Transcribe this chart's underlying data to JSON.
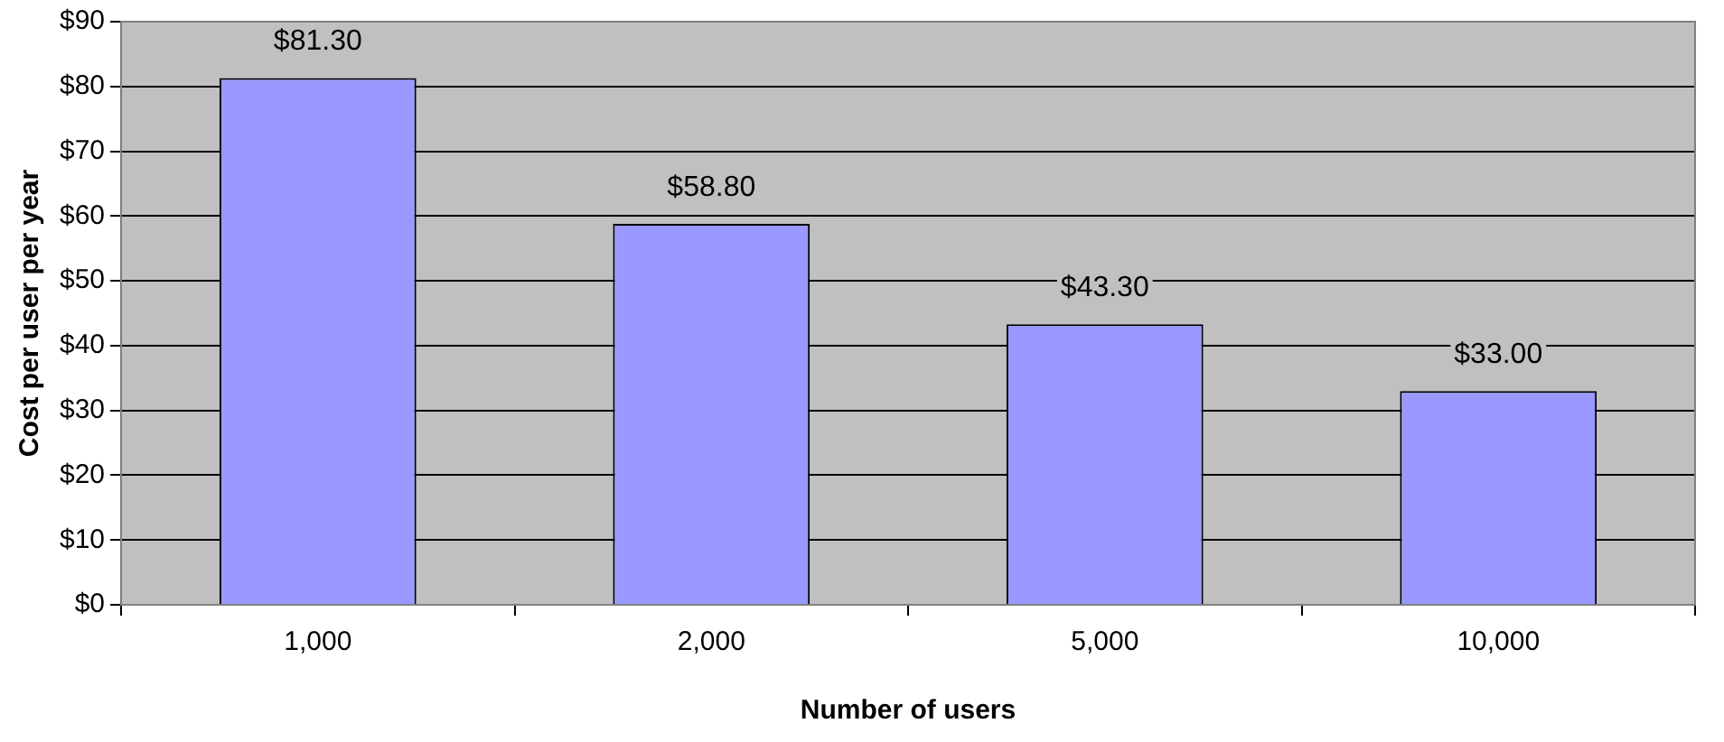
{
  "chart_data": {
    "type": "bar",
    "xlabel": "Number of users",
    "ylabel": "Cost per user per year",
    "categories": [
      "1,000",
      "2,000",
      "5,000",
      "10,000"
    ],
    "values": [
      81.3,
      58.8,
      43.3,
      33.0
    ],
    "value_labels": [
      "$81.30",
      "$58.80",
      "$43.30",
      "$33.00"
    ],
    "color": "#9999ff",
    "ylim": [
      0,
      90
    ],
    "yticks": [
      {
        "value": 0,
        "label": "$0"
      },
      {
        "value": 10,
        "label": "$10"
      },
      {
        "value": 20,
        "label": "$20"
      },
      {
        "value": 30,
        "label": "$30"
      },
      {
        "value": 40,
        "label": "$40"
      },
      {
        "value": 50,
        "label": "$50"
      },
      {
        "value": 60,
        "label": "$60"
      },
      {
        "value": 70,
        "label": "$70"
      },
      {
        "value": 80,
        "label": "$80"
      },
      {
        "value": 90,
        "label": "$90"
      }
    ],
    "grid": "y",
    "legend": false
  }
}
